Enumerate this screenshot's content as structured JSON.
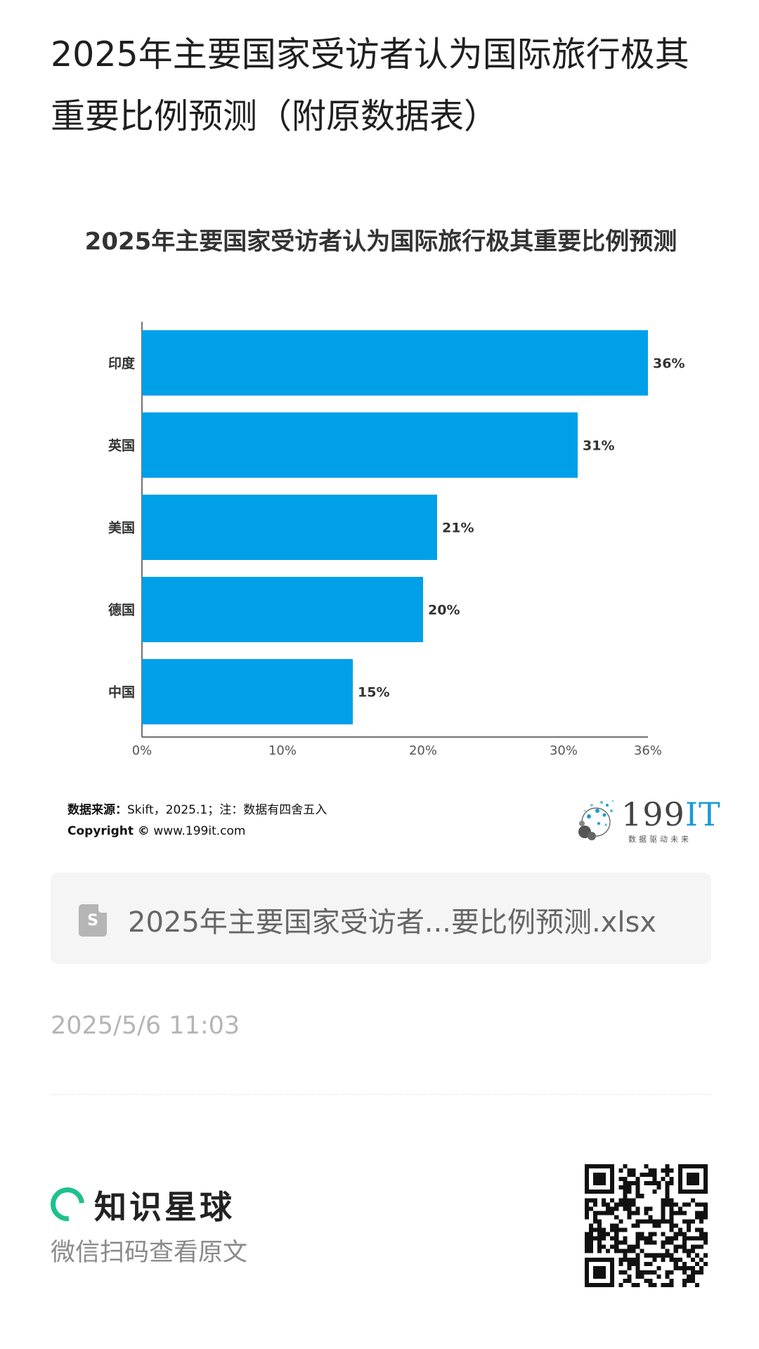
{
  "article": {
    "title": "2025年主要国家受访者认为国际旅行极其重要比例预测（附原数据表）"
  },
  "chart_data": {
    "type": "bar",
    "orientation": "horizontal",
    "title": "2025年主要国家受访者认为国际旅行极其重要比例预测",
    "categories": [
      "印度",
      "英国",
      "美国",
      "德国",
      "中国"
    ],
    "values": [
      36,
      31,
      21,
      20,
      15
    ],
    "data_labels": [
      "36%",
      "31%",
      "21%",
      "20%",
      "15%"
    ],
    "x_ticks": [
      "0%",
      "10%",
      "20%",
      "30%",
      "36%"
    ],
    "x_tick_values": [
      0,
      10,
      20,
      30,
      36
    ],
    "xlim": [
      0,
      36
    ],
    "bar_color": "#00a0e9",
    "grid": false,
    "legend": "none"
  },
  "source": {
    "label": "数据来源：",
    "text": "Skift，2025.1；注：数据有四舍五入",
    "copyright_label": "Copyright ©",
    "copyright_url": "www.199it.com"
  },
  "logo": {
    "main": "199",
    "accent": "IT",
    "slogan": "数据驱动未来"
  },
  "file": {
    "icon": "spreadsheet-file-icon",
    "icon_letter": "S",
    "name": "2025年主要国家受访者...要比例预测.xlsx"
  },
  "timestamp": "2025/5/6 11:03",
  "footer": {
    "brand_icon": "zsxq-ring-icon",
    "brand_name": "知识星球",
    "hint": "微信扫码查看原文",
    "brand_color": "#1fc08e"
  }
}
